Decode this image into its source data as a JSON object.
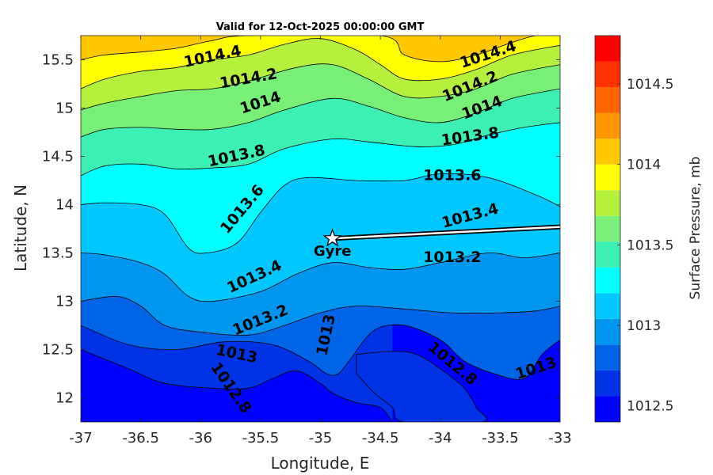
{
  "chart_data": {
    "type": "contourf",
    "title": "Valid for 12-Oct-2025 00:00:00 GMT",
    "xlabel": "Longitude, E",
    "ylabel": "Latitude, N",
    "xlim": [
      -37,
      -33
    ],
    "ylim": [
      11.75,
      15.75
    ],
    "xticks": [
      -37,
      -36.5,
      -36,
      -35.5,
      -35,
      -34.5,
      -34,
      -33.5,
      -33
    ],
    "xtick_labels": [
      "-37",
      "-36.5",
      "-36",
      "-35.5",
      "-35",
      "-34.5",
      "-34",
      "-33.5",
      "-33"
    ],
    "yticks": [
      12,
      12.5,
      13,
      13.5,
      14,
      14.5,
      15,
      15.5
    ],
    "ytick_labels": [
      "12",
      "12.5",
      "13",
      "13.5",
      "14",
      "14.5",
      "15",
      "15.5"
    ],
    "colorbar": {
      "label": "Surface Pressure, mb",
      "range": [
        1012.4,
        1014.8
      ],
      "ticks": [
        1012.5,
        1013,
        1013.5,
        1014,
        1014.5
      ],
      "tick_labels": [
        "1012.5",
        "1013",
        "1013.5",
        "1014",
        "1014.5"
      ],
      "colors": [
        "#0000ff",
        "#0032e6",
        "#0064e6",
        "#0096f0",
        "#00c8ff",
        "#00ffff",
        "#3cf0b4",
        "#78f078",
        "#b4f03c",
        "#ffff00",
        "#ffc800",
        "#ff9600",
        "#ff6400",
        "#ff3200",
        "#ff0000"
      ]
    },
    "contour_levels": [
      {
        "value": 1012.8,
        "labels": [
          {
            "text": "1012.8",
            "x": -35.75,
            "y": 12.1,
            "angle": 55
          },
          {
            "text": "1012.8",
            "x": -33.9,
            "y": 12.35,
            "angle": 40
          }
        ]
      },
      {
        "value": 1013.0,
        "labels": [
          {
            "text": "1013",
            "x": -35.7,
            "y": 12.45,
            "angle": 12
          },
          {
            "text": "1013",
            "x": -34.95,
            "y": 12.65,
            "angle": -78
          },
          {
            "text": "1013",
            "x": -33.2,
            "y": 12.3,
            "angle": -18
          }
        ]
      },
      {
        "value": 1013.2,
        "labels": [
          {
            "text": "1013.2",
            "x": -35.5,
            "y": 12.8,
            "angle": -22
          },
          {
            "text": "1013.2",
            "x": -33.9,
            "y": 13.45,
            "angle": 0
          }
        ]
      },
      {
        "value": 1013.4,
        "labels": [
          {
            "text": "1013.4",
            "x": -35.55,
            "y": 13.25,
            "angle": -25
          },
          {
            "text": "1013.4",
            "x": -33.75,
            "y": 13.88,
            "angle": -15
          }
        ]
      },
      {
        "value": 1013.6,
        "labels": [
          {
            "text": "1013.6",
            "x": -35.65,
            "y": 13.95,
            "angle": -50
          },
          {
            "text": "1013.6",
            "x": -33.9,
            "y": 14.3,
            "angle": 0
          }
        ]
      },
      {
        "value": 1013.8,
        "labels": [
          {
            "text": "1013.8",
            "x": -35.7,
            "y": 14.5,
            "angle": -12
          },
          {
            "text": "1013.8",
            "x": -33.75,
            "y": 14.7,
            "angle": -8
          }
        ]
      },
      {
        "value": 1014.0,
        "labels": [
          {
            "text": "1014",
            "x": -35.5,
            "y": 15.05,
            "angle": -18
          },
          {
            "text": "1014",
            "x": -33.65,
            "y": 15.0,
            "angle": -20
          }
        ]
      },
      {
        "value": 1014.2,
        "labels": [
          {
            "text": "1014.2",
            "x": -35.6,
            "y": 15.3,
            "angle": -10
          },
          {
            "text": "1014.2",
            "x": -33.75,
            "y": 15.22,
            "angle": -22
          }
        ]
      },
      {
        "value": 1014.4,
        "labels": [
          {
            "text": "1014.4",
            "x": -35.9,
            "y": 15.53,
            "angle": -12
          },
          {
            "text": "1014.4",
            "x": -33.6,
            "y": 15.55,
            "angle": -18
          }
        ]
      }
    ],
    "bands": [
      {
        "level_index": 0,
        "boundary": null
      },
      {
        "level_index": 1,
        "boundary": [
          [
            -37,
            12.5
          ],
          [
            -36.6,
            12.3
          ],
          [
            -36.3,
            12.15
          ],
          [
            -35.9,
            12.1
          ],
          [
            -35.6,
            12.1
          ],
          [
            -35.4,
            12.2
          ],
          [
            -35.2,
            12.28
          ],
          [
            -35.0,
            12.15
          ],
          [
            -34.9,
            12.05
          ],
          [
            -34.7,
            11.95
          ],
          [
            -34.5,
            11.9
          ],
          [
            -34.4,
            11.75
          ]
        ]
      },
      {
        "level_index": 2,
        "boundary": [
          [
            -37,
            12.75
          ],
          [
            -36.6,
            12.55
          ],
          [
            -36.2,
            12.5
          ],
          [
            -35.8,
            12.58
          ],
          [
            -35.4,
            12.55
          ],
          [
            -35.1,
            12.38
          ],
          [
            -34.95,
            12.25
          ],
          [
            -34.85,
            12.25
          ],
          [
            -34.75,
            12.4
          ],
          [
            -34.55,
            12.7
          ],
          [
            -34.3,
            12.75
          ],
          [
            -34.0,
            12.6
          ],
          [
            -33.8,
            12.38
          ],
          [
            -33.55,
            12.25
          ],
          [
            -33.3,
            12.2
          ],
          [
            -33.15,
            12.45
          ],
          [
            -33.0,
            12.6
          ]
        ]
      },
      {
        "level_index": 3,
        "boundary": [
          [
            -37,
            13.0
          ],
          [
            -36.7,
            13.05
          ],
          [
            -36.5,
            12.95
          ],
          [
            -36.3,
            12.75
          ],
          [
            -36.0,
            12.68
          ],
          [
            -35.6,
            12.65
          ],
          [
            -35.3,
            12.75
          ],
          [
            -35.0,
            12.88
          ],
          [
            -34.7,
            12.95
          ],
          [
            -34.3,
            12.92
          ],
          [
            -33.9,
            12.88
          ],
          [
            -33.5,
            12.88
          ],
          [
            -33.2,
            12.9
          ],
          [
            -33.0,
            12.95
          ]
        ]
      },
      {
        "level_index": 4,
        "boundary": [
          [
            -37,
            13.5
          ],
          [
            -36.8,
            13.48
          ],
          [
            -36.5,
            13.4
          ],
          [
            -36.3,
            13.28
          ],
          [
            -36.1,
            13.05
          ],
          [
            -35.9,
            13.0
          ],
          [
            -35.5,
            13.1
          ],
          [
            -35.2,
            13.28
          ],
          [
            -34.9,
            13.4
          ],
          [
            -34.6,
            13.35
          ],
          [
            -34.3,
            13.33
          ],
          [
            -34.0,
            13.4
          ],
          [
            -33.6,
            13.5
          ],
          [
            -33.3,
            13.45
          ],
          [
            -33.0,
            13.5
          ]
        ]
      },
      {
        "level_index": 5,
        "boundary": [
          [
            -37,
            14.0
          ],
          [
            -36.8,
            14.02
          ],
          [
            -36.5,
            14.0
          ],
          [
            -36.3,
            13.9
          ],
          [
            -36.1,
            13.55
          ],
          [
            -35.95,
            13.5
          ],
          [
            -35.7,
            13.6
          ],
          [
            -35.5,
            13.92
          ],
          [
            -35.3,
            14.2
          ],
          [
            -35.1,
            14.28
          ],
          [
            -34.7,
            14.25
          ],
          [
            -34.3,
            14.25
          ],
          [
            -34.0,
            14.32
          ],
          [
            -33.6,
            14.28
          ],
          [
            -33.2,
            14.1
          ],
          [
            -33.0,
            13.98
          ]
        ]
      },
      {
        "level_index": 6,
        "boundary": [
          [
            -37,
            14.3
          ],
          [
            -36.8,
            14.4
          ],
          [
            -36.5,
            14.42
          ],
          [
            -36.2,
            14.37
          ],
          [
            -35.9,
            14.38
          ],
          [
            -35.6,
            14.42
          ],
          [
            -35.3,
            14.58
          ],
          [
            -34.9,
            14.68
          ],
          [
            -34.6,
            14.65
          ],
          [
            -34.2,
            14.6
          ],
          [
            -33.9,
            14.62
          ],
          [
            -33.6,
            14.72
          ],
          [
            -33.3,
            14.8
          ],
          [
            -33.0,
            14.85
          ]
        ]
      },
      {
        "level_index": 7,
        "boundary": [
          [
            -37,
            14.7
          ],
          [
            -36.8,
            14.78
          ],
          [
            -36.5,
            14.8
          ],
          [
            -36.2,
            14.78
          ],
          [
            -35.9,
            14.78
          ],
          [
            -35.6,
            14.85
          ],
          [
            -35.3,
            14.98
          ],
          [
            -34.9,
            15.1
          ],
          [
            -34.6,
            15.02
          ],
          [
            -34.3,
            14.9
          ],
          [
            -34.0,
            14.85
          ],
          [
            -33.7,
            14.95
          ],
          [
            -33.4,
            15.1
          ],
          [
            -33.0,
            15.2
          ]
        ]
      },
      {
        "level_index": 8,
        "boundary": [
          [
            -37,
            14.98
          ],
          [
            -36.8,
            15.05
          ],
          [
            -36.5,
            15.12
          ],
          [
            -36.2,
            15.18
          ],
          [
            -35.9,
            15.2
          ],
          [
            -35.6,
            15.28
          ],
          [
            -35.2,
            15.42
          ],
          [
            -34.9,
            15.45
          ],
          [
            -34.6,
            15.3
          ],
          [
            -34.3,
            15.12
          ],
          [
            -34.0,
            15.12
          ],
          [
            -33.7,
            15.2
          ],
          [
            -33.4,
            15.35
          ],
          [
            -33.0,
            15.45
          ]
        ]
      },
      {
        "level_index": 9,
        "boundary": [
          [
            -37,
            15.2
          ],
          [
            -36.8,
            15.3
          ],
          [
            -36.5,
            15.38
          ],
          [
            -36.2,
            15.42
          ],
          [
            -35.9,
            15.5
          ],
          [
            -35.6,
            15.55
          ],
          [
            -35.3,
            15.66
          ],
          [
            -35.0,
            15.72
          ],
          [
            -34.7,
            15.6
          ],
          [
            -34.5,
            15.45
          ],
          [
            -34.3,
            15.3
          ],
          [
            -34.0,
            15.3
          ],
          [
            -33.7,
            15.4
          ],
          [
            -33.4,
            15.55
          ],
          [
            -33.0,
            15.65
          ]
        ]
      },
      {
        "level_index": 10,
        "boundary": [
          [
            -37,
            15.5
          ],
          [
            -36.8,
            15.55
          ],
          [
            -36.5,
            15.58
          ],
          [
            -36.2,
            15.62
          ],
          [
            -35.9,
            15.7
          ],
          [
            -35.6,
            15.75
          ],
          [
            -34.5,
            15.75
          ],
          [
            -34.3,
            15.55
          ],
          [
            -34.0,
            15.48
          ],
          [
            -33.7,
            15.55
          ],
          [
            -33.4,
            15.68
          ],
          [
            -33.2,
            15.75
          ],
          [
            -33.0,
            15.75
          ]
        ]
      }
    ],
    "low_pocket": {
      "level_index": 1,
      "points": [
        [
          -34.7,
          12.45
        ],
        [
          -34.4,
          12.48
        ],
        [
          -34.2,
          12.45
        ],
        [
          -34.0,
          12.3
        ],
        [
          -33.8,
          12.1
        ],
        [
          -33.7,
          11.9
        ],
        [
          -33.65,
          11.75
        ],
        [
          -34.3,
          11.75
        ],
        [
          -34.4,
          11.9
        ],
        [
          -34.55,
          12.05
        ],
        [
          -34.7,
          12.25
        ]
      ]
    },
    "storm_track": {
      "points": [
        [
          -34.9,
          13.65
        ],
        [
          -33.0,
          13.77
        ]
      ],
      "marker": "star",
      "marker_label": "Gyre"
    }
  }
}
